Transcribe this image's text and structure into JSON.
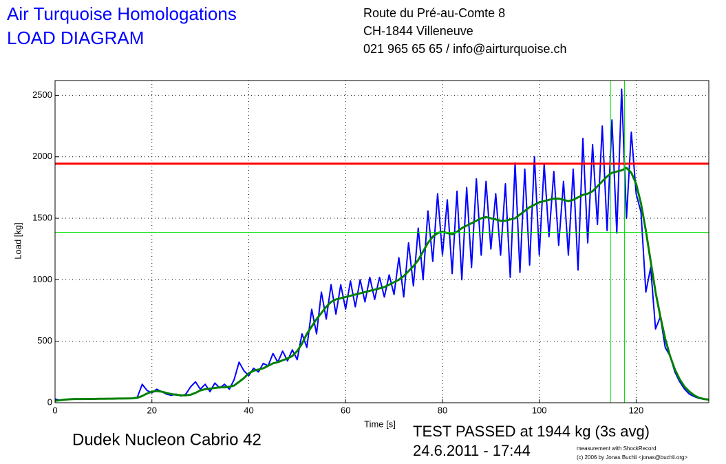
{
  "header": {
    "title": [
      "Air Turquoise Homologations",
      "LOAD DIAGRAM"
    ],
    "address": [
      "Route du Pré-au-Comte 8",
      "CH-1844 Villeneuve",
      "021 965 65 65 / info@airturquoise.ch"
    ]
  },
  "footer": {
    "wing": "Dudek Nucleon Cabrio 42",
    "result": "TEST PASSED at 1944 kg (3s avg)",
    "date": "24.6.2011 - 17:44",
    "credit": [
      "measurement with ShockRecord",
      "(c) 2006 by Jonas Buchli <jonas@buchli.org>"
    ]
  },
  "chart_data": {
    "type": "line",
    "x_label": "Time [s]",
    "y_label": "Load [kg]",
    "xlim": [
      0,
      135
    ],
    "ylim": [
      0,
      2620
    ],
    "xticks": [
      0,
      20,
      40,
      60,
      80,
      100,
      120
    ],
    "yticks": [
      0,
      500,
      1000,
      1500,
      2000,
      2500
    ],
    "grid": true,
    "hlines": [
      {
        "value": 1944,
        "color": "#ff0000"
      },
      {
        "value": 1385,
        "color": "#00dd00"
      }
    ],
    "vlines": [
      {
        "value": 114.7,
        "color": "#00dd00"
      },
      {
        "value": 117.6,
        "color": "#00dd00"
      }
    ],
    "x": [
      0,
      1,
      2,
      3,
      4,
      5,
      6,
      7,
      8,
      9,
      10,
      11,
      12,
      13,
      14,
      15,
      16,
      17,
      18,
      19,
      20,
      21,
      22,
      23,
      24,
      25,
      26,
      27,
      28,
      29,
      30,
      31,
      32,
      33,
      34,
      35,
      36,
      37,
      38,
      39,
      40,
      41,
      42,
      43,
      44,
      45,
      46,
      47,
      48,
      49,
      50,
      51,
      52,
      53,
      54,
      55,
      56,
      57,
      58,
      59,
      60,
      61,
      62,
      63,
      64,
      65,
      66,
      67,
      68,
      69,
      70,
      71,
      72,
      73,
      74,
      75,
      76,
      77,
      78,
      79,
      80,
      81,
      82,
      83,
      84,
      85,
      86,
      87,
      88,
      89,
      90,
      91,
      92,
      93,
      94,
      95,
      96,
      97,
      98,
      99,
      100,
      101,
      102,
      103,
      104,
      105,
      106,
      107,
      108,
      109,
      110,
      111,
      112,
      113,
      114,
      115,
      116,
      117,
      118,
      119,
      120,
      121,
      122,
      123,
      124,
      125,
      126,
      127,
      128,
      129,
      130,
      131,
      132,
      133,
      134,
      135
    ],
    "series": [
      {
        "color": "#0000ff",
        "width": 2,
        "values": [
          30,
          20,
          25,
          28,
          30,
          30,
          30,
          31,
          31,
          32,
          32,
          33,
          33,
          34,
          34,
          35,
          36,
          45,
          150,
          100,
          80,
          110,
          90,
          70,
          60,
          70,
          55,
          70,
          130,
          170,
          110,
          150,
          90,
          160,
          120,
          150,
          110,
          190,
          330,
          260,
          220,
          280,
          250,
          320,
          300,
          400,
          330,
          420,
          340,
          430,
          350,
          560,
          450,
          760,
          560,
          900,
          680,
          960,
          720,
          960,
          760,
          990,
          780,
          1000,
          820,
          1020,
          840,
          1020,
          860,
          1040,
          880,
          1180,
          860,
          1300,
          950,
          1420,
          1000,
          1560,
          1150,
          1700,
          1200,
          1650,
          1050,
          1720,
          1000,
          1750,
          1100,
          1820,
          1200,
          1800,
          1250,
          1700,
          1200,
          1780,
          1020,
          1950,
          1060,
          1900,
          1120,
          2000,
          1200,
          1940,
          1350,
          1880,
          1280,
          1800,
          1200,
          1900,
          1080,
          2150,
          1300,
          2100,
          1450,
          2250,
          1400,
          2300,
          1380,
          2550,
          1500,
          2200,
          1700,
          1550,
          900,
          1100,
          600,
          700,
          450,
          380,
          250,
          170,
          110,
          70,
          50,
          35,
          30,
          28
        ]
      },
      {
        "color": "#008000",
        "width": 3,
        "values": [
          15,
          20,
          25,
          28,
          30,
          30,
          30,
          31,
          31,
          32,
          32,
          33,
          33,
          34,
          34,
          35,
          36,
          40,
          55,
          75,
          90,
          95,
          90,
          80,
          70,
          65,
          60,
          60,
          65,
          80,
          100,
          110,
          115,
          120,
          125,
          125,
          130,
          140,
          170,
          200,
          240,
          260,
          270,
          280,
          300,
          320,
          330,
          345,
          360,
          380,
          420,
          480,
          560,
          620,
          680,
          730,
          780,
          820,
          840,
          850,
          860,
          870,
          880,
          890,
          900,
          910,
          920,
          930,
          940,
          960,
          980,
          1000,
          1030,
          1070,
          1110,
          1160,
          1230,
          1300,
          1350,
          1380,
          1390,
          1380,
          1370,
          1390,
          1420,
          1440,
          1460,
          1480,
          1500,
          1510,
          1500,
          1490,
          1480,
          1480,
          1490,
          1500,
          1530,
          1560,
          1590,
          1610,
          1630,
          1640,
          1650,
          1660,
          1660,
          1650,
          1640,
          1650,
          1670,
          1690,
          1700,
          1720,
          1760,
          1800,
          1840,
          1870,
          1880,
          1890,
          1910,
          1870,
          1780,
          1620,
          1400,
          1150,
          900,
          700,
          520,
          380,
          270,
          190,
          130,
          90,
          60,
          40,
          30,
          25
        ]
      }
    ]
  }
}
